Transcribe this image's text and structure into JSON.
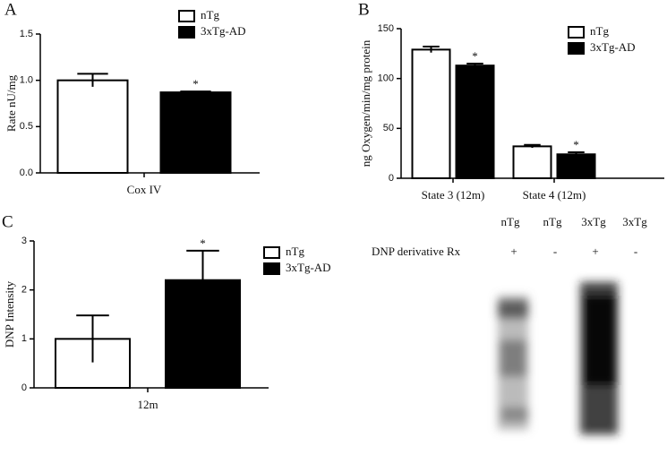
{
  "chart_data": [
    {
      "type": "bar",
      "panel": "A",
      "ylabel": "Rate nU/mg",
      "categories": [
        "Cox IV"
      ],
      "ylim": [
        0,
        1.5
      ],
      "yticks": [
        {
          "value": 0,
          "label": "0.0"
        },
        0.5,
        {
          "value": 1,
          "label": "1.0"
        },
        1.5
      ],
      "series": [
        {
          "name": "nTg",
          "color": "#ffffff",
          "values": [
            1.0
          ],
          "errors": [
            0.07
          ]
        },
        {
          "name": "3xTg-AD",
          "color": "#000000",
          "values": [
            0.87
          ],
          "errors": [
            0.01
          ],
          "significance": [
            "*"
          ]
        }
      ]
    },
    {
      "type": "bar",
      "panel": "B",
      "ylabel": "ng Oxygen/min/mg protein",
      "categories": [
        "State 3 (12m)",
        "State 4 (12m)"
      ],
      "ylim": [
        0,
        150
      ],
      "yticks": [
        0,
        50,
        100,
        150
      ],
      "series": [
        {
          "name": "nTg",
          "color": "#ffffff",
          "values": [
            129,
            32
          ],
          "errors": [
            3,
            1.5
          ]
        },
        {
          "name": "3xTg-AD",
          "color": "#000000",
          "values": [
            113,
            24
          ],
          "errors": [
            2,
            2
          ],
          "significance": [
            "*",
            "*"
          ]
        }
      ]
    },
    {
      "type": "bar",
      "panel": "C",
      "ylabel": "DNP Intensity",
      "categories": [
        "12m"
      ],
      "ylim": [
        0,
        3
      ],
      "yticks": [
        0,
        1,
        2,
        3
      ],
      "series": [
        {
          "name": "nTg",
          "color": "#ffffff",
          "values": [
            1.0
          ],
          "errors": [
            0.48
          ]
        },
        {
          "name": "3xTg-AD",
          "color": "#000000",
          "values": [
            2.2
          ],
          "errors": [
            0.6
          ],
          "significance": [
            "*"
          ]
        }
      ]
    }
  ],
  "blot": {
    "lanes": [
      "nTg",
      "nTg",
      "3xTg",
      "3xTg"
    ],
    "row_label": "DNP derivative Rx",
    "treatment": [
      "+",
      "-",
      "+",
      "-"
    ]
  }
}
